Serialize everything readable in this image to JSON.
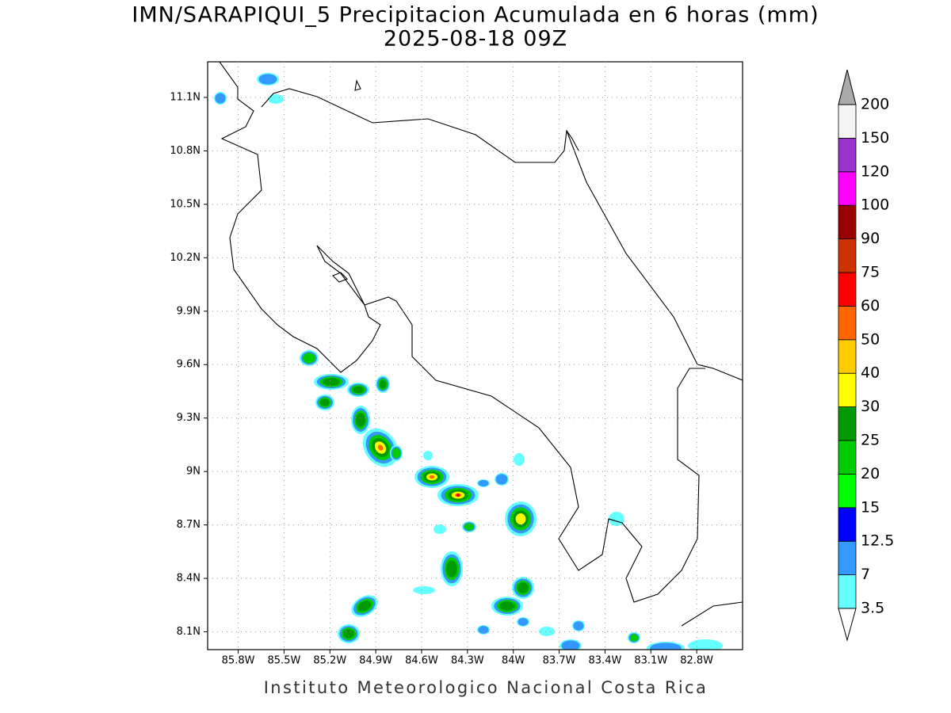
{
  "map": {
    "title": "IMN/SARAPIQUI_5 Precipitacion Acumulada en 6 horas (mm)",
    "subtitle": "2025-08-18 09Z",
    "footer": "Instituto Meteorologico Nacional Costa Rica",
    "lonlim": [
      -86.0,
      -82.5
    ],
    "latlim": [
      8.0,
      11.3
    ],
    "lon_ticks": [
      {
        "value": -85.8,
        "label": "85.8W"
      },
      {
        "value": -85.5,
        "label": "85.5W"
      },
      {
        "value": -85.2,
        "label": "85.2W"
      },
      {
        "value": -84.9,
        "label": "84.9W"
      },
      {
        "value": -84.6,
        "label": "84.6W"
      },
      {
        "value": -84.3,
        "label": "84.3W"
      },
      {
        "value": -84.0,
        "label": "84W"
      },
      {
        "value": -83.7,
        "label": "83.7W"
      },
      {
        "value": -83.4,
        "label": "83.4W"
      },
      {
        "value": -83.1,
        "label": "83.1W"
      },
      {
        "value": -82.8,
        "label": "82.8W"
      }
    ],
    "lat_ticks": [
      {
        "value": 8.1,
        "label": "8.1N"
      },
      {
        "value": 8.4,
        "label": "8.4N"
      },
      {
        "value": 8.7,
        "label": "8.7N"
      },
      {
        "value": 9.0,
        "label": "9N"
      },
      {
        "value": 9.3,
        "label": "9.3N"
      },
      {
        "value": 9.6,
        "label": "9.6N"
      },
      {
        "value": 9.9,
        "label": "9.9N"
      },
      {
        "value": 10.2,
        "label": "10.2N"
      },
      {
        "value": 10.5,
        "label": "10.5N"
      },
      {
        "value": 10.8,
        "label": "10.8N"
      },
      {
        "value": 11.1,
        "label": "11.1N"
      }
    ],
    "grid": true,
    "colorbar": {
      "levels": [
        3.5,
        7,
        12.5,
        15,
        20,
        25,
        30,
        40,
        50,
        60,
        75,
        90,
        100,
        120,
        150,
        200
      ],
      "colors": [
        "#66ffff",
        "#3399ff",
        "#0000ff",
        "#00ff00",
        "#00cc00",
        "#009900",
        "#ffff00",
        "#ffcc00",
        "#ff6600",
        "#ff0000",
        "#cc3300",
        "#990000",
        "#ff00ff",
        "#9933cc",
        "#f5f5f5"
      ],
      "under_color": "#ffffff",
      "over_color": "#aaaaaa"
    }
  }
}
